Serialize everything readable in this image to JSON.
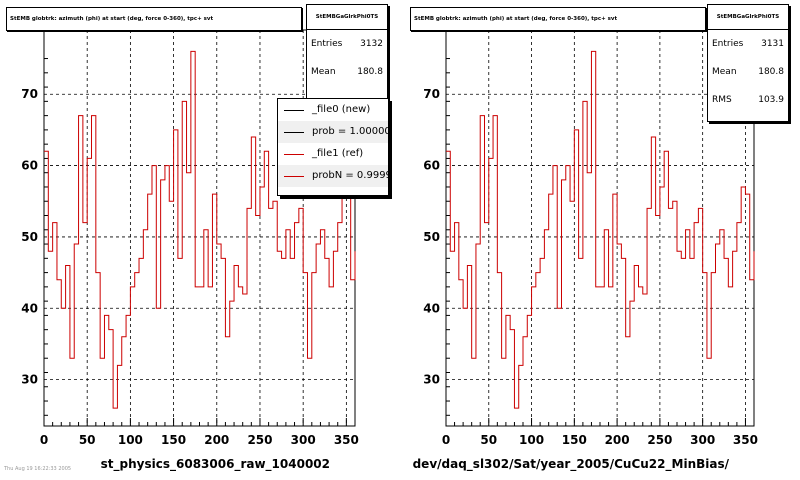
{
  "colors": {
    "hist_ref": "#cc0000",
    "hist_new": "#000000",
    "axis": "#000000",
    "grid": "#000000"
  },
  "chart_data": [
    {
      "type": "line",
      "step": true,
      "title": "StEMB globtrk: azimuth (phi) at start (deg, force 0-360), tpc+ svt",
      "xlabel": "st_physics_6083006_raw_1040002",
      "ylabel": "",
      "xlim": [
        0,
        360
      ],
      "ylim": [
        23.5,
        79
      ],
      "xticks": [
        0,
        50,
        100,
        150,
        200,
        250,
        300,
        350
      ],
      "yticks": [
        30,
        40,
        50,
        60,
        70
      ],
      "grid": true,
      "bin_width": 5,
      "series": [
        {
          "name": "_file1 (ref)",
          "x_start": 0,
          "values": [
            62,
            48,
            52,
            44,
            40,
            46,
            33,
            49,
            67,
            52,
            61,
            67,
            45,
            33,
            39,
            37,
            26,
            32,
            36,
            39,
            43,
            45,
            47,
            51,
            56,
            60,
            40,
            58,
            60,
            55,
            65,
            47,
            69,
            59,
            76,
            43,
            43,
            51,
            43,
            56,
            49,
            47,
            36,
            41,
            46,
            43,
            42,
            54,
            64,
            53,
            57,
            62,
            54,
            55,
            48,
            47,
            51,
            47,
            52,
            54,
            45,
            33,
            45,
            49,
            51,
            47,
            43,
            48,
            52,
            57,
            56,
            44,
            48
          ]
        }
      ],
      "stats": {
        "name": "StEMBGaGlrkPhi0TS",
        "entries_label": "Entries",
        "entries": "3132",
        "mean_label": "Mean",
        "mean": "180.8"
      },
      "legend": {
        "placement": "top-right",
        "entries": [
          {
            "label": "_file0 (new)",
            "color": "#000000"
          },
          {
            "label": "prob = 1.000000",
            "color": "#000000"
          },
          {
            "label": "_file1 (ref)",
            "color": "#cc0000"
          },
          {
            "label": "probN = 0.99994",
            "color": "#cc0000"
          }
        ]
      }
    },
    {
      "type": "line",
      "step": true,
      "title": "StEMB globtrk: azimuth (phi) at start (deg, force 0-360), tpc+ svt",
      "xlabel": "dev/daq_sl302/Sat/year_2005/CuCu22_MinBias/",
      "ylabel": "",
      "xlim": [
        0,
        360
      ],
      "ylim": [
        23.5,
        79
      ],
      "xticks": [
        0,
        50,
        100,
        150,
        200,
        250,
        300,
        350
      ],
      "yticks": [
        30,
        40,
        50,
        60,
        70
      ],
      "grid": true,
      "bin_width": 5,
      "series": [
        {
          "name": "",
          "x_start": 0,
          "values": [
            62,
            48,
            52,
            44,
            40,
            46,
            33,
            49,
            67,
            52,
            61,
            67,
            45,
            33,
            39,
            37,
            26,
            32,
            36,
            39,
            43,
            45,
            47,
            51,
            56,
            60,
            40,
            58,
            60,
            55,
            65,
            47,
            69,
            59,
            76,
            43,
            43,
            51,
            43,
            56,
            49,
            47,
            36,
            41,
            46,
            43,
            42,
            54,
            64,
            53,
            57,
            62,
            54,
            55,
            48,
            47,
            51,
            47,
            52,
            54,
            45,
            33,
            45,
            49,
            51,
            47,
            43,
            48,
            52,
            57,
            56,
            44,
            48
          ]
        }
      ],
      "stats": {
        "name": "StEMBGaGlrkPhi0TS",
        "entries_label": "Entries",
        "entries": "3131",
        "mean_label": "Mean",
        "mean": "180.8",
        "rms_label": "RMS",
        "rms": "103.9"
      }
    }
  ],
  "footer": {
    "stamp": "Thu Aug 19 16:22:33 2005"
  }
}
